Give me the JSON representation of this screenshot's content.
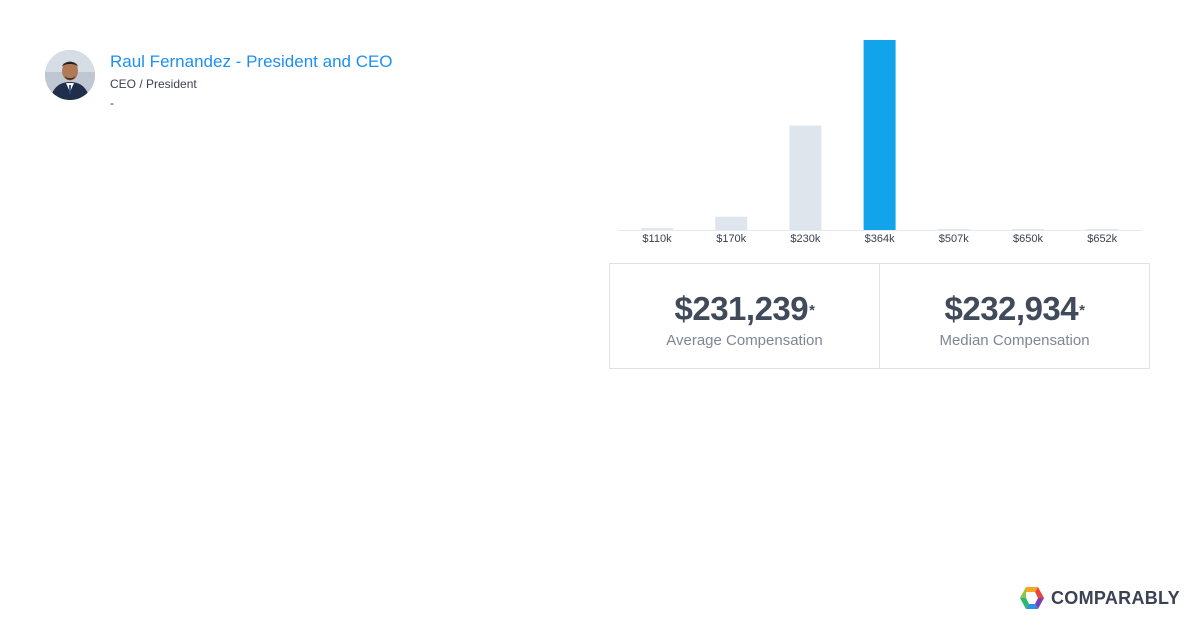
{
  "profile": {
    "name": "Raul Fernandez - President and CEO",
    "role": "CEO / President",
    "detail": "-"
  },
  "chart_data": {
    "type": "bar",
    "categories": [
      "$110k",
      "$170k",
      "$230k",
      "$364k",
      "$507k",
      "$650k",
      "$652k"
    ],
    "values": [
      1,
      7,
      55,
      100,
      0.3,
      0.3,
      0.3
    ],
    "highlight_index": 3,
    "colors": {
      "highlight": "#12a4ea",
      "default": "#dfe5ec",
      "axis": "#e6e9ee"
    },
    "title": "",
    "xlabel": "",
    "ylabel": "",
    "grid": false
  },
  "stats": {
    "average": {
      "value": "$231,239",
      "marker": "*",
      "label": "Average Compensation"
    },
    "median": {
      "value": "$232,934",
      "marker": "*",
      "label": "Median Compensation"
    }
  },
  "brand": {
    "name": "COMPARABLY"
  },
  "colors": {
    "link": "#1e8ff0",
    "text": "#3a4150",
    "muted": "#7d8794"
  }
}
